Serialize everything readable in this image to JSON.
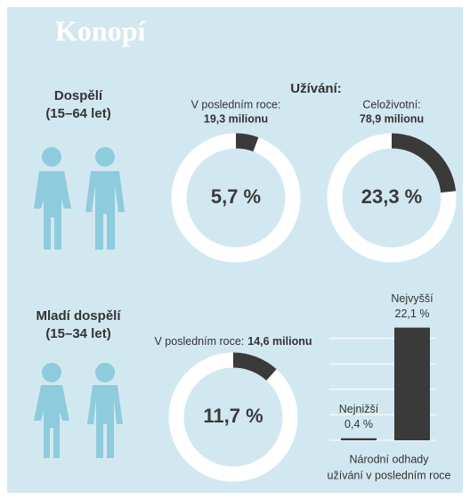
{
  "title": "Konopí",
  "usage_label": "Užívání:",
  "groups": [
    {
      "name": "Dospělí",
      "age": "(15–64 let)"
    },
    {
      "name": "Mladí dospělí",
      "age": "(15–34 let)"
    }
  ],
  "chart_data": [
    {
      "type": "donut",
      "label": "V posledním roce:",
      "sublabel": "19,3 milionu",
      "values": [
        5.7
      ],
      "value_labels": [
        "5,7 %"
      ],
      "color": "#3a3a3a"
    },
    {
      "type": "donut",
      "label": "Celoživotní:",
      "sublabel": "78,9 milionu",
      "values": [
        23.3
      ],
      "value_labels": [
        "23,3 %"
      ],
      "color": "#3a3a3a"
    },
    {
      "type": "donut",
      "label": "V posledním roce:",
      "sublabel": "14,6 milionu",
      "values": [
        11.7
      ],
      "value_labels": [
        "11,7 %"
      ],
      "color": "#3a3a3a"
    },
    {
      "type": "bar",
      "categories": [
        "Nejnižší",
        "Nejvyšší"
      ],
      "values": [
        0.4,
        22.1
      ],
      "value_labels": [
        "0,4 %",
        "22,1 %"
      ],
      "color": "#3a3a3a",
      "ylim": [
        0,
        25
      ],
      "yticks": [
        0,
        5,
        10,
        15,
        20
      ],
      "grid": true,
      "caption": [
        "Národní odhady",
        "užívání v posledním roce"
      ]
    }
  ]
}
